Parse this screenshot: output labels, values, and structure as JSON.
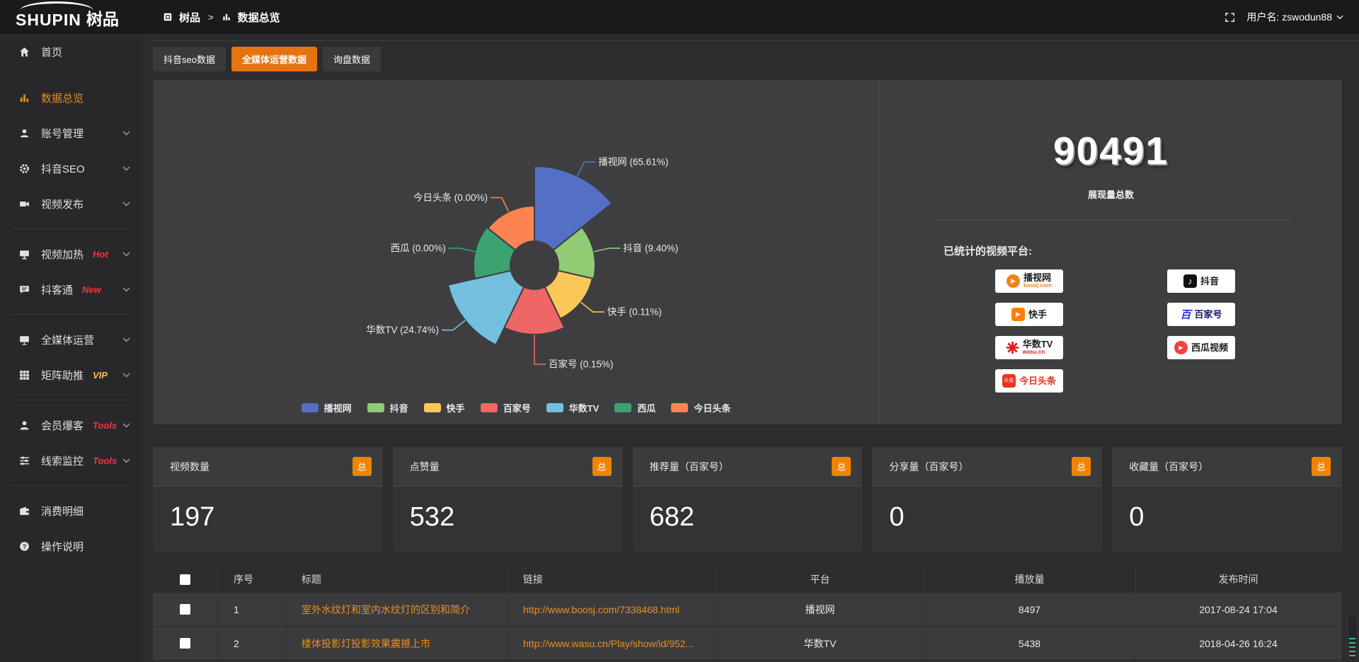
{
  "topbar": {
    "logo_en": "SHUPIN",
    "logo_cn": "树品",
    "breadcrumb": {
      "app": "树品",
      "separator": ">",
      "page": "数据总览"
    },
    "username": "用户名: zswodun88"
  },
  "tabs": [
    {
      "label": "抖音seo数据",
      "active": false
    },
    {
      "label": "全媒体运营数据",
      "active": true
    },
    {
      "label": "询盘数据",
      "active": false
    }
  ],
  "sidebar": {
    "items": [
      {
        "id": "home",
        "label": "首页",
        "icon": "home-icon",
        "active": false
      },
      {
        "id": "data-overview",
        "label": "数据总览",
        "icon": "chart-icon",
        "active": true
      },
      {
        "id": "account",
        "label": "账号管理",
        "icon": "user-icon",
        "expandable": true
      },
      {
        "id": "douyin-seo",
        "label": "抖音SEO",
        "icon": "gear-icon",
        "expandable": true
      },
      {
        "id": "video-publish",
        "label": "视频发布",
        "icon": "video-icon",
        "expandable": true,
        "divider_after": true
      },
      {
        "id": "video-heat",
        "label": "视频加热",
        "icon": "heat-icon",
        "tag": "Hot",
        "tag_color": "#f5333f",
        "expandable": true
      },
      {
        "id": "douketong",
        "label": "抖客通",
        "icon": "chat-icon",
        "tag": "New",
        "tag_color": "#f5333f",
        "expandable": true,
        "divider_after": true
      },
      {
        "id": "media-ops",
        "label": "全媒体运营",
        "icon": "monitor-icon",
        "expandable": true
      },
      {
        "id": "matrix-boost",
        "label": "矩阵助推",
        "icon": "grid-icon",
        "tag": "VIP",
        "tag_color": "#f6c14d",
        "expandable": true,
        "divider_after": true
      },
      {
        "id": "member-burst",
        "label": "会员爆客",
        "icon": "member-icon",
        "tag": "Tools",
        "tag_color": "#f5333f",
        "expandable": true
      },
      {
        "id": "leads-monitor",
        "label": "线索监控",
        "icon": "sliders-icon",
        "tag": "Tools",
        "tag_color": "#f5333f",
        "expandable": true,
        "divider_after": true
      },
      {
        "id": "spending",
        "label": "消费明细",
        "icon": "wallet-icon"
      },
      {
        "id": "guide",
        "label": "操作说明",
        "icon": "help-icon"
      }
    ]
  },
  "chart_data": {
    "type": "pie",
    "variant": "nightingale-rose",
    "legend_position": "bottom",
    "angle_equal": true,
    "inner_radius": 34,
    "center": [
      539,
      262
    ],
    "slices": [
      {
        "name": "播视网",
        "pct": 65.61,
        "label": "播视网 (65.61%)",
        "color": "#5470c6",
        "radius": 140
      },
      {
        "name": "抖音",
        "pct": 9.4,
        "label": "抖音 (9.40%)",
        "color": "#91cc75",
        "radius": 86
      },
      {
        "name": "快手",
        "pct": 0.11,
        "label": "快手 (0.11%)",
        "color": "#fac858",
        "radius": 84
      },
      {
        "name": "百家号",
        "pct": 0.15,
        "label": "百家号 (0.15%)",
        "color": "#ee6666",
        "radius": 98
      },
      {
        "name": "华数TV",
        "pct": 24.74,
        "label": "华数TV (24.74%)",
        "color": "#73c0de",
        "radius": 125
      },
      {
        "name": "西瓜",
        "pct": 0.0,
        "label": "西瓜 (0.00%)",
        "color": "#3ba272",
        "radius": 86
      },
      {
        "name": "今日头条",
        "pct": 0.0,
        "label": "今日头条 (0.00%)",
        "color": "#fc8452",
        "radius": 84
      }
    ]
  },
  "summary": {
    "total_value": "90491",
    "total_label": "展现量总数",
    "platforms_title": "已统计的视频平台:",
    "platforms_left": [
      {
        "name": "播视网",
        "sub": "boosj.com",
        "icon": "boosj-logo"
      },
      {
        "name": "快手",
        "icon": "kuaishou-logo"
      },
      {
        "name": "华数TV",
        "sub": "wasu.cn",
        "icon": "wasu-logo"
      },
      {
        "name": "今日头条",
        "icon": "toutiao-logo"
      }
    ],
    "platforms_right": [
      {
        "name": "抖音",
        "icon": "douyin-logo"
      },
      {
        "name": "百家号",
        "icon": "baijiahao-logo"
      },
      {
        "name": "西瓜视频",
        "icon": "xigua-logo"
      }
    ]
  },
  "stat_cards": [
    {
      "label": "视频数量",
      "badge": "总",
      "value": "197"
    },
    {
      "label": "点赞量",
      "badge": "总",
      "value": "532"
    },
    {
      "label": "推荐量（百家号）",
      "badge": "总",
      "value": "682"
    },
    {
      "label": "分享量（百家号）",
      "badge": "总",
      "value": "0"
    },
    {
      "label": "收藏量（百家号）",
      "badge": "总",
      "value": "0"
    }
  ],
  "table": {
    "columns": [
      "序号",
      "标题",
      "链接",
      "平台",
      "播放量",
      "发布时间"
    ],
    "rows": [
      {
        "index": "1",
        "title": "室外水纹灯和室内水纹灯的区别和简介",
        "link": "http://www.boosj.com/7338468.html",
        "platform": "播视网",
        "plays": "8497",
        "time": "2017-08-24 17:04"
      },
      {
        "index": "2",
        "title": "楼体投影灯投影效果震撼上市",
        "link": "http://www.wasu.cn/Play/show/id/952...",
        "platform": "华数TV",
        "plays": "5438",
        "time": "2018-04-26 16:24"
      }
    ]
  },
  "colors": {
    "accent_orange": "#e57410",
    "badge_orange": "#ef8400",
    "link_orange": "#e89020",
    "tag_red": "#f5333f",
    "tag_vip": "#f6c14d"
  }
}
